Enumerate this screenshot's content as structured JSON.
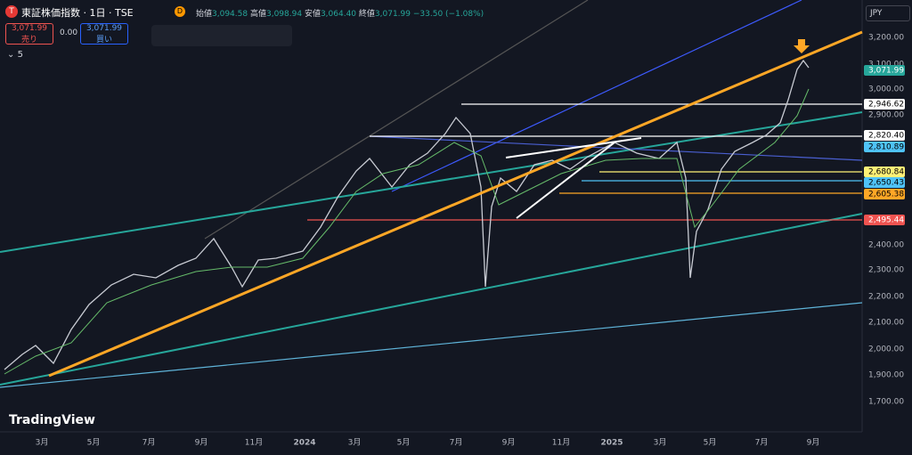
{
  "header": {
    "symbol": "東証株価指数 · 1日 · TSE",
    "badge": "D",
    "open_label": "始値",
    "open": "3,094.58",
    "high_label": "高値",
    "high": "3,098.94",
    "low_label": "安値",
    "low": "3,064.40",
    "close_label": "終値",
    "close": "3,071.99",
    "change": "−33.50 (−1.08%)"
  },
  "trade": {
    "sell_price": "3,071.99",
    "sell_label": "売り",
    "spread": "0.00",
    "buy_price": "3,071.99",
    "buy_label": "買い"
  },
  "indicator_count": "5",
  "currency": "JPY",
  "price_axis": [
    "3,200.00",
    "3,100.00",
    "3,000.00",
    "2,900.00",
    "2,400.00",
    "2,300.00",
    "2,200.00",
    "2,100.00",
    "2,000.00",
    "1,900.00",
    "1,700.00"
  ],
  "price_labels": [
    "3,071.99",
    "2,946.62",
    "2,820.40",
    "2,810.89",
    "2,680.84",
    "2,650.43",
    "2,605.38",
    "2,495.44"
  ],
  "time_axis": [
    "3月",
    "5月",
    "7月",
    "9月",
    "11月",
    "2024",
    "3月",
    "5月",
    "7月",
    "9月",
    "11月",
    "2025",
    "3月",
    "5月",
    "7月",
    "9月"
  ],
  "logo": "TradingView"
}
